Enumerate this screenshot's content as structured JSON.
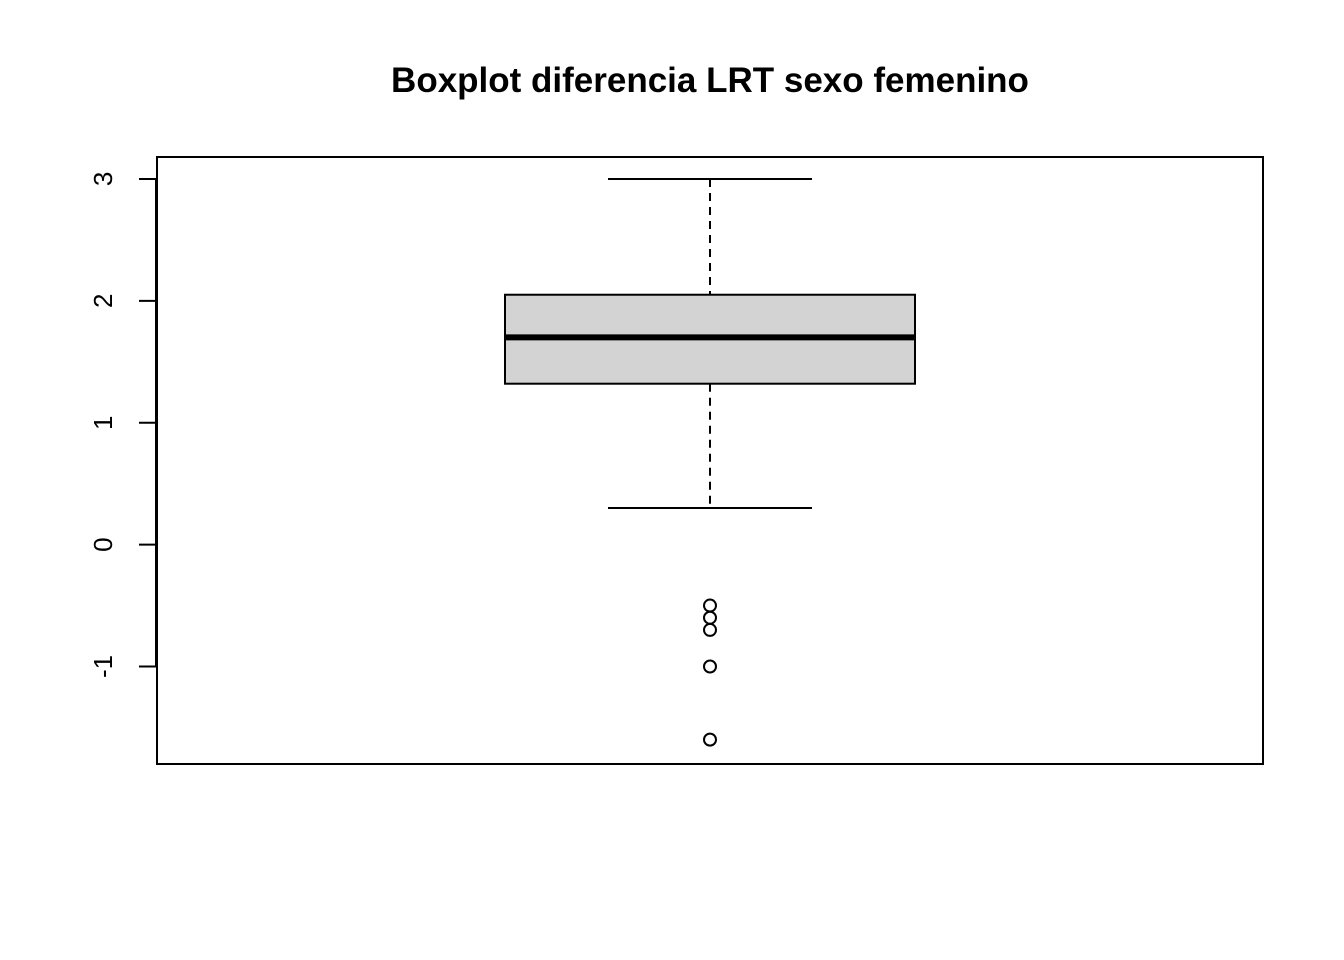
{
  "chart_data": {
    "type": "boxplot",
    "title": "Boxplot diferencia LRT sexo femenino",
    "xlabel": "",
    "ylabel": "",
    "ylim": [
      -1.8,
      3.18
    ],
    "y_ticks": [
      -1,
      0,
      1,
      2,
      3
    ],
    "y_tick_labels": [
      "-1",
      "0",
      "1",
      "2",
      "3"
    ],
    "grid": false,
    "box": {
      "whisker_low": 0.3,
      "q1": 1.32,
      "median": 1.7,
      "q3": 2.05,
      "whisker_high": 3.0
    },
    "outliers": [
      -0.5,
      -0.6,
      -0.7,
      -1.0,
      -1.6
    ],
    "colors": {
      "box_fill": "#d3d3d3",
      "stroke": "#000000",
      "background": "#ffffff"
    }
  }
}
